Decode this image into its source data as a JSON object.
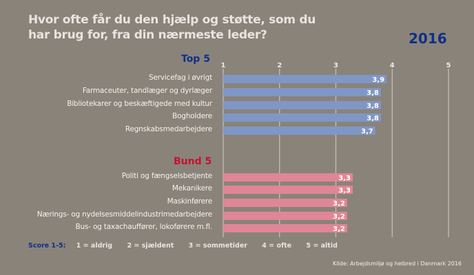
{
  "title": "Hvor ofte får du den hjælp og støtte, som du har brug for, fra din nærmeste leder?",
  "year": "2016",
  "colors": {
    "top": "#7f97c6",
    "bottom": "#e08696",
    "grid": "#c9c3ba",
    "accent_blue": "#0f2f8a",
    "accent_red": "#c4122f"
  },
  "legend": {
    "heading": "Score 1-5:",
    "items": [
      "1 = aldrig",
      "2 = sjældent",
      "3 = sommetider",
      "4 = ofte",
      "5 = altid"
    ]
  },
  "source": "Kilde: Arbejdsmiljø og helbred i Danmark 2016",
  "chart_data": {
    "type": "bar",
    "orientation": "horizontal",
    "title": "Hvor ofte får du den hjælp og støtte, som du har brug for, fra din nærmeste leder?",
    "xlim": [
      1,
      5
    ],
    "xticks": [
      "1",
      "2",
      "3",
      "4",
      "5"
    ],
    "grid": true,
    "groups": [
      {
        "name": "Top 5",
        "categories": [
          "Servicefag i øvrigt",
          "Farmaceuter, tandlæger og dyrlæger",
          "Bibliotekarer og beskæftigede med kultur",
          "Bogholdere",
          "Regnskabsmedarbejdere"
        ],
        "values": [
          3.9,
          3.8,
          3.8,
          3.8,
          3.7
        ],
        "labels": [
          "3,9",
          "3,8",
          "3,8",
          "3,8",
          "3,7"
        ]
      },
      {
        "name": "Bund 5",
        "categories": [
          "Politi og fængselsbetjente",
          "Mekanikere",
          "Maskinførere",
          "Nærings- og nydelsesmiddelindustrimedarbejdere",
          "Bus- og taxachauffører, lokoførere m.fl."
        ],
        "values": [
          3.3,
          3.3,
          3.2,
          3.2,
          3.2
        ],
        "labels": [
          "3,3",
          "3,3",
          "3,2",
          "3,2",
          "3,2"
        ]
      }
    ]
  }
}
